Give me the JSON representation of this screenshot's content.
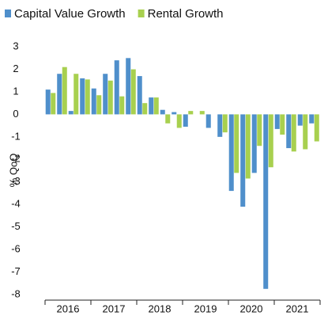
{
  "chart_data": {
    "type": "bar",
    "series": [
      {
        "name": "Capital Value Growth",
        "color": "#4f8fcb",
        "values": [
          1.1,
          1.8,
          0.15,
          1.6,
          1.15,
          1.8,
          2.4,
          2.5,
          1.7,
          0.75,
          0.2,
          0.1,
          -0.55,
          0,
          -0.6,
          -1.0,
          -3.4,
          -4.1,
          -2.6,
          -7.75,
          -0.65,
          -1.5,
          -0.5,
          -0.4
        ]
      },
      {
        "name": "Rental Growth",
        "color": "#a8d04f",
        "values": [
          0.95,
          2.1,
          1.8,
          1.55,
          0.85,
          1.5,
          0.8,
          2.0,
          0.5,
          0.75,
          -0.4,
          -0.6,
          0.15,
          0.15,
          0,
          -0.8,
          -2.6,
          -2.85,
          -1.4,
          -2.35,
          -0.9,
          -1.65,
          -1.55,
          -1.2
        ]
      }
    ],
    "categories": [
      null,
      null,
      null,
      null,
      null,
      null,
      null,
      null,
      null,
      null,
      null,
      null,
      null,
      null,
      null,
      null,
      null,
      null,
      null,
      null,
      null,
      null,
      null,
      null
    ],
    "year_labels": [
      "2016",
      "2017",
      "2018",
      "2019",
      "2020",
      "2021"
    ],
    "ylabel": "% QoQ",
    "ylim": [
      -8.25,
      3.25
    ],
    "yticks": [
      3,
      2,
      1,
      0,
      -1,
      -2,
      -3,
      -4,
      -5,
      -6,
      -7,
      -8
    ]
  }
}
